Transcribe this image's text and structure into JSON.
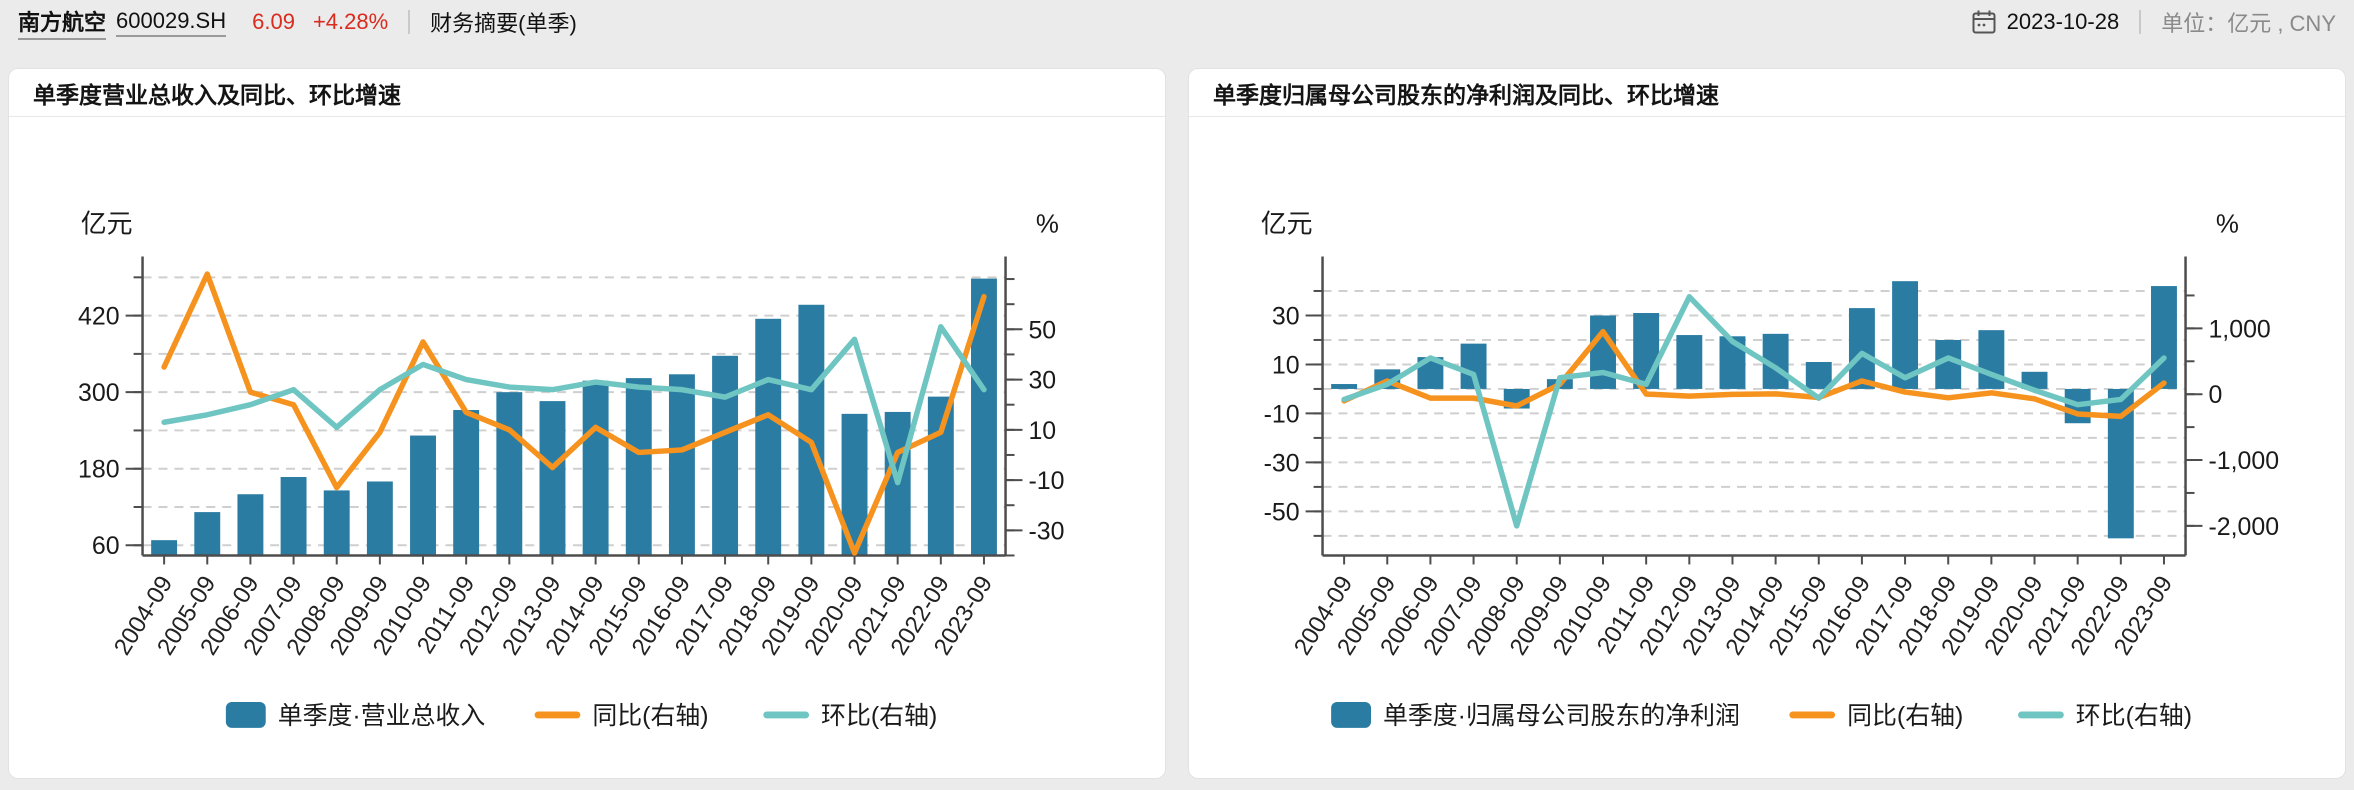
{
  "header": {
    "stock_name": "南方航空",
    "stock_code": "600029.SH",
    "price": "6.09",
    "change_pct": "+4.28%",
    "page_title": "财务摘要(单季)",
    "date": "2023-10-28",
    "unit_label": "单位：",
    "unit_value": "亿元 , CNY",
    "colors": {
      "up_red": "#D92B1E",
      "muted_gray": "#8a8a8a"
    }
  },
  "chart_data": [
    {
      "type": "bar",
      "title": "单季度营业总收入及同比、环比增速",
      "y_left_title": "亿元",
      "y_right_title": "%",
      "legend_position": "bottom",
      "grid": true,
      "categories": [
        "2004-09",
        "2005-09",
        "2006-09",
        "2007-09",
        "2008-09",
        "2009-09",
        "2010-09",
        "2011-09",
        "2012-09",
        "2013-09",
        "2014-09",
        "2015-09",
        "2016-09",
        "2017-09",
        "2018-09",
        "2019-09",
        "2020-09",
        "2021-09",
        "2022-09",
        "2023-09"
      ],
      "series": [
        {
          "name": "单季度·营业总收入",
          "type": "bar",
          "axis": "left",
          "color": "#2A7CA3",
          "values": [
            68,
            112,
            140,
            167,
            146,
            160,
            232,
            272,
            300,
            286,
            318,
            322,
            328,
            357,
            415,
            437,
            266,
            269,
            293,
            478
          ]
        },
        {
          "name": "同比(右轴)",
          "type": "line",
          "axis": "right",
          "color": "#F6921E",
          "values": [
            35,
            72,
            25,
            20,
            -13,
            9,
            45,
            17,
            10,
            -5,
            11,
            1,
            2,
            9,
            16,
            5,
            -39,
            1,
            9,
            63
          ]
        },
        {
          "name": "环比(右轴)",
          "type": "line",
          "axis": "right",
          "color": "#6FC5C2",
          "values": [
            13,
            16,
            20,
            26,
            11,
            26,
            36,
            30,
            27,
            26,
            29,
            27,
            26,
            23,
            30,
            26,
            46,
            -11,
            51,
            26
          ]
        }
      ],
      "left_axis": {
        "min": 44,
        "max": 497,
        "bar_base": 44,
        "grid_ticks": [
          60,
          120,
          180,
          240,
          300,
          360,
          420,
          480
        ],
        "minor_ticks": [
          60,
          120,
          180,
          240,
          300,
          360,
          420,
          480
        ],
        "labeled_ticks": [
          {
            "v": 420,
            "label": "420"
          },
          {
            "v": 300,
            "label": "300"
          },
          {
            "v": 180,
            "label": "180"
          },
          {
            "v": 60,
            "label": "60"
          }
        ]
      },
      "right_axis": {
        "min": -40,
        "max": 75,
        "minor_ticks": [
          -40,
          -30,
          -20,
          -10,
          0,
          10,
          20,
          30,
          40,
          50,
          60,
          70
        ],
        "labeled_ticks": [
          {
            "v": 50,
            "label": "50"
          },
          {
            "v": 30,
            "label": "30"
          },
          {
            "v": 10,
            "label": "10"
          },
          {
            "v": -10,
            "label": "-10"
          },
          {
            "v": -30,
            "label": "-30"
          }
        ]
      }
    },
    {
      "type": "bar",
      "title": "单季度归属母公司股东的净利润及同比、环比增速",
      "y_left_title": "亿元",
      "y_right_title": "%",
      "legend_position": "bottom",
      "grid": true,
      "categories": [
        "2004-09",
        "2005-09",
        "2006-09",
        "2007-09",
        "2008-09",
        "2009-09",
        "2010-09",
        "2011-09",
        "2012-09",
        "2013-09",
        "2014-09",
        "2015-09",
        "2016-09",
        "2017-09",
        "2018-09",
        "2019-09",
        "2020-09",
        "2021-09",
        "2022-09",
        "2023-09"
      ],
      "series": [
        {
          "name": "单季度·归属母公司股东的净利润",
          "type": "bar",
          "axis": "left",
          "color": "#2A7CA3",
          "values": [
            2,
            8,
            13,
            18.5,
            -8,
            4,
            30,
            31,
            22,
            21.5,
            22.5,
            11,
            33,
            44,
            20,
            24,
            7,
            -14,
            -61,
            42
          ]
        },
        {
          "name": "同比(右轴)",
          "type": "line",
          "axis": "right",
          "color": "#F6921E",
          "values": [
            -100,
            200,
            -60,
            -60,
            -180,
            150,
            950,
            2,
            -29,
            -2,
            5,
            -51,
            200,
            33,
            -55,
            20,
            -71,
            -300,
            -336,
            169
          ]
        },
        {
          "name": "环比(右轴)",
          "type": "line",
          "axis": "right",
          "color": "#6FC5C2",
          "values": [
            -80,
            150,
            550,
            300,
            -2000,
            250,
            330,
            150,
            1480,
            800,
            400,
            -60,
            620,
            250,
            550,
            300,
            60,
            -160,
            -80,
            550
          ]
        }
      ],
      "left_axis": {
        "min": -68,
        "max": 50,
        "bar_base": 0,
        "grid_ticks": [
          -60,
          -50,
          -40,
          -30,
          -20,
          -10,
          0,
          10,
          20,
          30,
          40
        ],
        "minor_ticks": [
          -60,
          -50,
          -40,
          -30,
          -20,
          -10,
          0,
          10,
          20,
          30,
          40
        ],
        "labeled_ticks": [
          {
            "v": 30,
            "label": "30"
          },
          {
            "v": 10,
            "label": "10"
          },
          {
            "v": -10,
            "label": "-10"
          },
          {
            "v": -30,
            "label": "-30"
          },
          {
            "v": -50,
            "label": "-50"
          }
        ]
      },
      "right_axis": {
        "min": -2450,
        "max": 1940,
        "minor_ticks": [
          -2000,
          -1500,
          -1000,
          -500,
          0,
          500,
          1000,
          1500
        ],
        "labeled_ticks": [
          {
            "v": 1000,
            "label": "1,000"
          },
          {
            "v": 0,
            "label": "0"
          },
          {
            "v": -1000,
            "label": "-1,000"
          },
          {
            "v": -2000,
            "label": "-2,000"
          }
        ]
      }
    }
  ]
}
